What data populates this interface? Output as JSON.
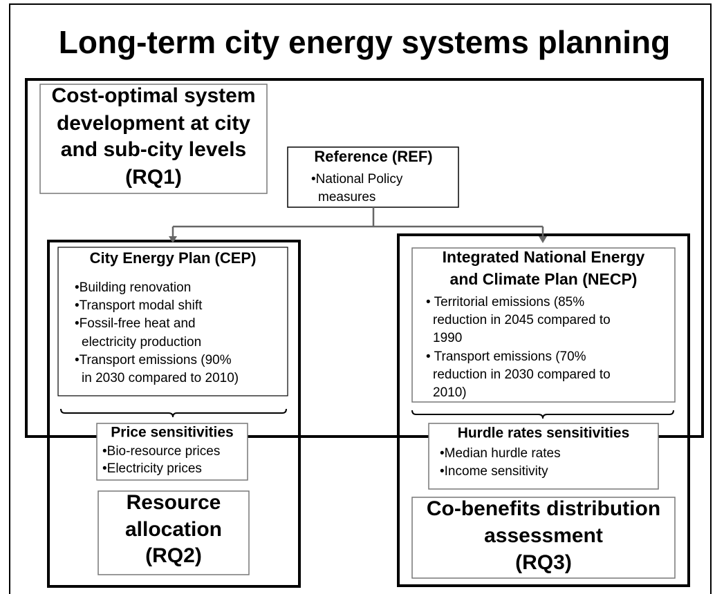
{
  "title": "Long-term city energy systems planning",
  "rq1": {
    "lines": [
      "Cost-optimal system",
      "development at city",
      "and sub-city levels",
      "(RQ1)"
    ]
  },
  "reference": {
    "title": "Reference (REF)",
    "lines": [
      "•National Policy",
      "measures"
    ]
  },
  "cep": {
    "title": "City Energy Plan (CEP)",
    "lines": [
      "•Building renovation",
      "•Transport modal shift",
      "•Fossil-free heat and",
      "electricity production",
      "•Transport emissions (90%",
      "in 2030 compared to 2010)"
    ]
  },
  "necp": {
    "title": [
      "Integrated National Energy",
      "and Climate Plan (NECP)"
    ],
    "lines": [
      "• Territorial emissions (85%",
      "reduction in 2045 compared to",
      "1990",
      "• Transport emissions (70%",
      "reduction in 2030 compared to",
      "2010)"
    ]
  },
  "price": {
    "title": "Price sensitivities",
    "lines": [
      "•Bio-resource prices",
      "•Electricity prices"
    ]
  },
  "hurdle": {
    "title": "Hurdle rates sensitivities",
    "lines": [
      "•Median hurdle rates",
      "•Income sensitivity"
    ]
  },
  "rq2": {
    "lines": [
      "Resource",
      "allocation",
      "(RQ2)"
    ]
  },
  "rq3": {
    "lines": [
      "Co-benefits distribution",
      "assessment",
      "(RQ3)"
    ]
  }
}
